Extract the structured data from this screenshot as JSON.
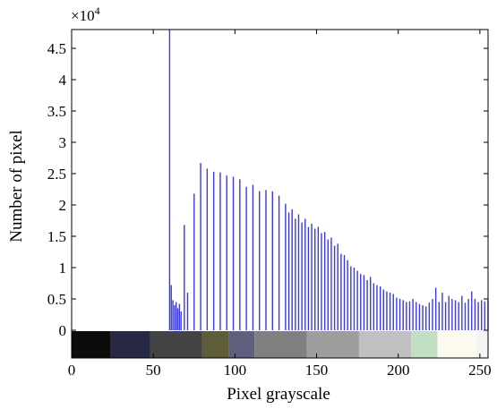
{
  "chart_data": {
    "type": "bar",
    "title": "",
    "xlabel": "Pixel grayscale",
    "ylabel": "Number of pixel",
    "y_multiplier": "×10",
    "y_exponent": "4",
    "xlim": [
      0,
      255
    ],
    "ylim": [
      0,
      4.8
    ],
    "grid": false,
    "x_ticks": [
      0,
      50,
      100,
      150,
      200,
      250
    ],
    "x_tick_labels": [
      "0",
      "50",
      "100",
      "150",
      "200",
      "250"
    ],
    "y_ticks": [
      0,
      0.5,
      1,
      1.5,
      2,
      2.5,
      3,
      3.5,
      4,
      4.5
    ],
    "y_tick_labels": [
      "0",
      "0.5",
      "1",
      "1.5",
      "2",
      "2.5",
      "3",
      "3.5",
      "4",
      "4.5"
    ],
    "bar_color": "#3a3adf",
    "series": [
      {
        "x": [
          60,
          61,
          62,
          63,
          64,
          65,
          66,
          67,
          69,
          71,
          75,
          79,
          83,
          87,
          91,
          95,
          99,
          103,
          107,
          111,
          115,
          119,
          123,
          127,
          131,
          133,
          135,
          137,
          139,
          141,
          143,
          145,
          147,
          149,
          151,
          153,
          155,
          157,
          159,
          161,
          163,
          165,
          167,
          169,
          171,
          173,
          175,
          177,
          179,
          181,
          183,
          185,
          187,
          189,
          191,
          193,
          195,
          197,
          199,
          201,
          203,
          205,
          207,
          209,
          211,
          213,
          215,
          217,
          219,
          221,
          223,
          225,
          227,
          229,
          231,
          233,
          235,
          237,
          239,
          241,
          243,
          245,
          247,
          249,
          251,
          253,
          255
        ],
        "values": [
          4.8,
          0.72,
          0.48,
          0.4,
          0.45,
          0.35,
          0.42,
          0.3,
          1.68,
          0.6,
          2.18,
          2.67,
          2.58,
          2.53,
          2.52,
          2.47,
          2.45,
          2.41,
          2.29,
          2.32,
          2.22,
          2.24,
          2.22,
          2.15,
          2.02,
          1.88,
          1.93,
          1.78,
          1.85,
          1.72,
          1.78,
          1.65,
          1.7,
          1.62,
          1.65,
          1.55,
          1.57,
          1.45,
          1.48,
          1.35,
          1.38,
          1.22,
          1.2,
          1.12,
          1.02,
          1.0,
          0.95,
          0.9,
          0.88,
          0.8,
          0.85,
          0.75,
          0.72,
          0.7,
          0.65,
          0.62,
          0.6,
          0.58,
          0.52,
          0.5,
          0.48,
          0.45,
          0.46,
          0.5,
          0.45,
          0.42,
          0.4,
          0.38,
          0.44,
          0.5,
          0.68,
          0.45,
          0.6,
          0.45,
          0.55,
          0.5,
          0.48,
          0.45,
          0.55,
          0.44,
          0.5,
          0.62,
          0.5,
          0.45,
          0.48,
          0.46,
          0.48
        ]
      }
    ],
    "colorbar": [
      {
        "x0": 0,
        "x1": 24,
        "color": "#0c0c0c"
      },
      {
        "x0": 24,
        "x1": 48,
        "color": "#272845"
      },
      {
        "x0": 48,
        "x1": 80,
        "color": "#444444"
      },
      {
        "x0": 80,
        "x1": 96,
        "color": "#5f5c3a"
      },
      {
        "x0": 96,
        "x1": 112,
        "color": "#5f607e"
      },
      {
        "x0": 112,
        "x1": 144,
        "color": "#808080"
      },
      {
        "x0": 144,
        "x1": 176,
        "color": "#9e9e9e"
      },
      {
        "x0": 176,
        "x1": 208,
        "color": "#c0c0c0"
      },
      {
        "x0": 208,
        "x1": 224,
        "color": "#c3dfc3"
      },
      {
        "x0": 224,
        "x1": 248,
        "color": "#fdfaf0"
      },
      {
        "x0": 248,
        "x1": 256,
        "color": "#f4f4f4"
      }
    ]
  }
}
